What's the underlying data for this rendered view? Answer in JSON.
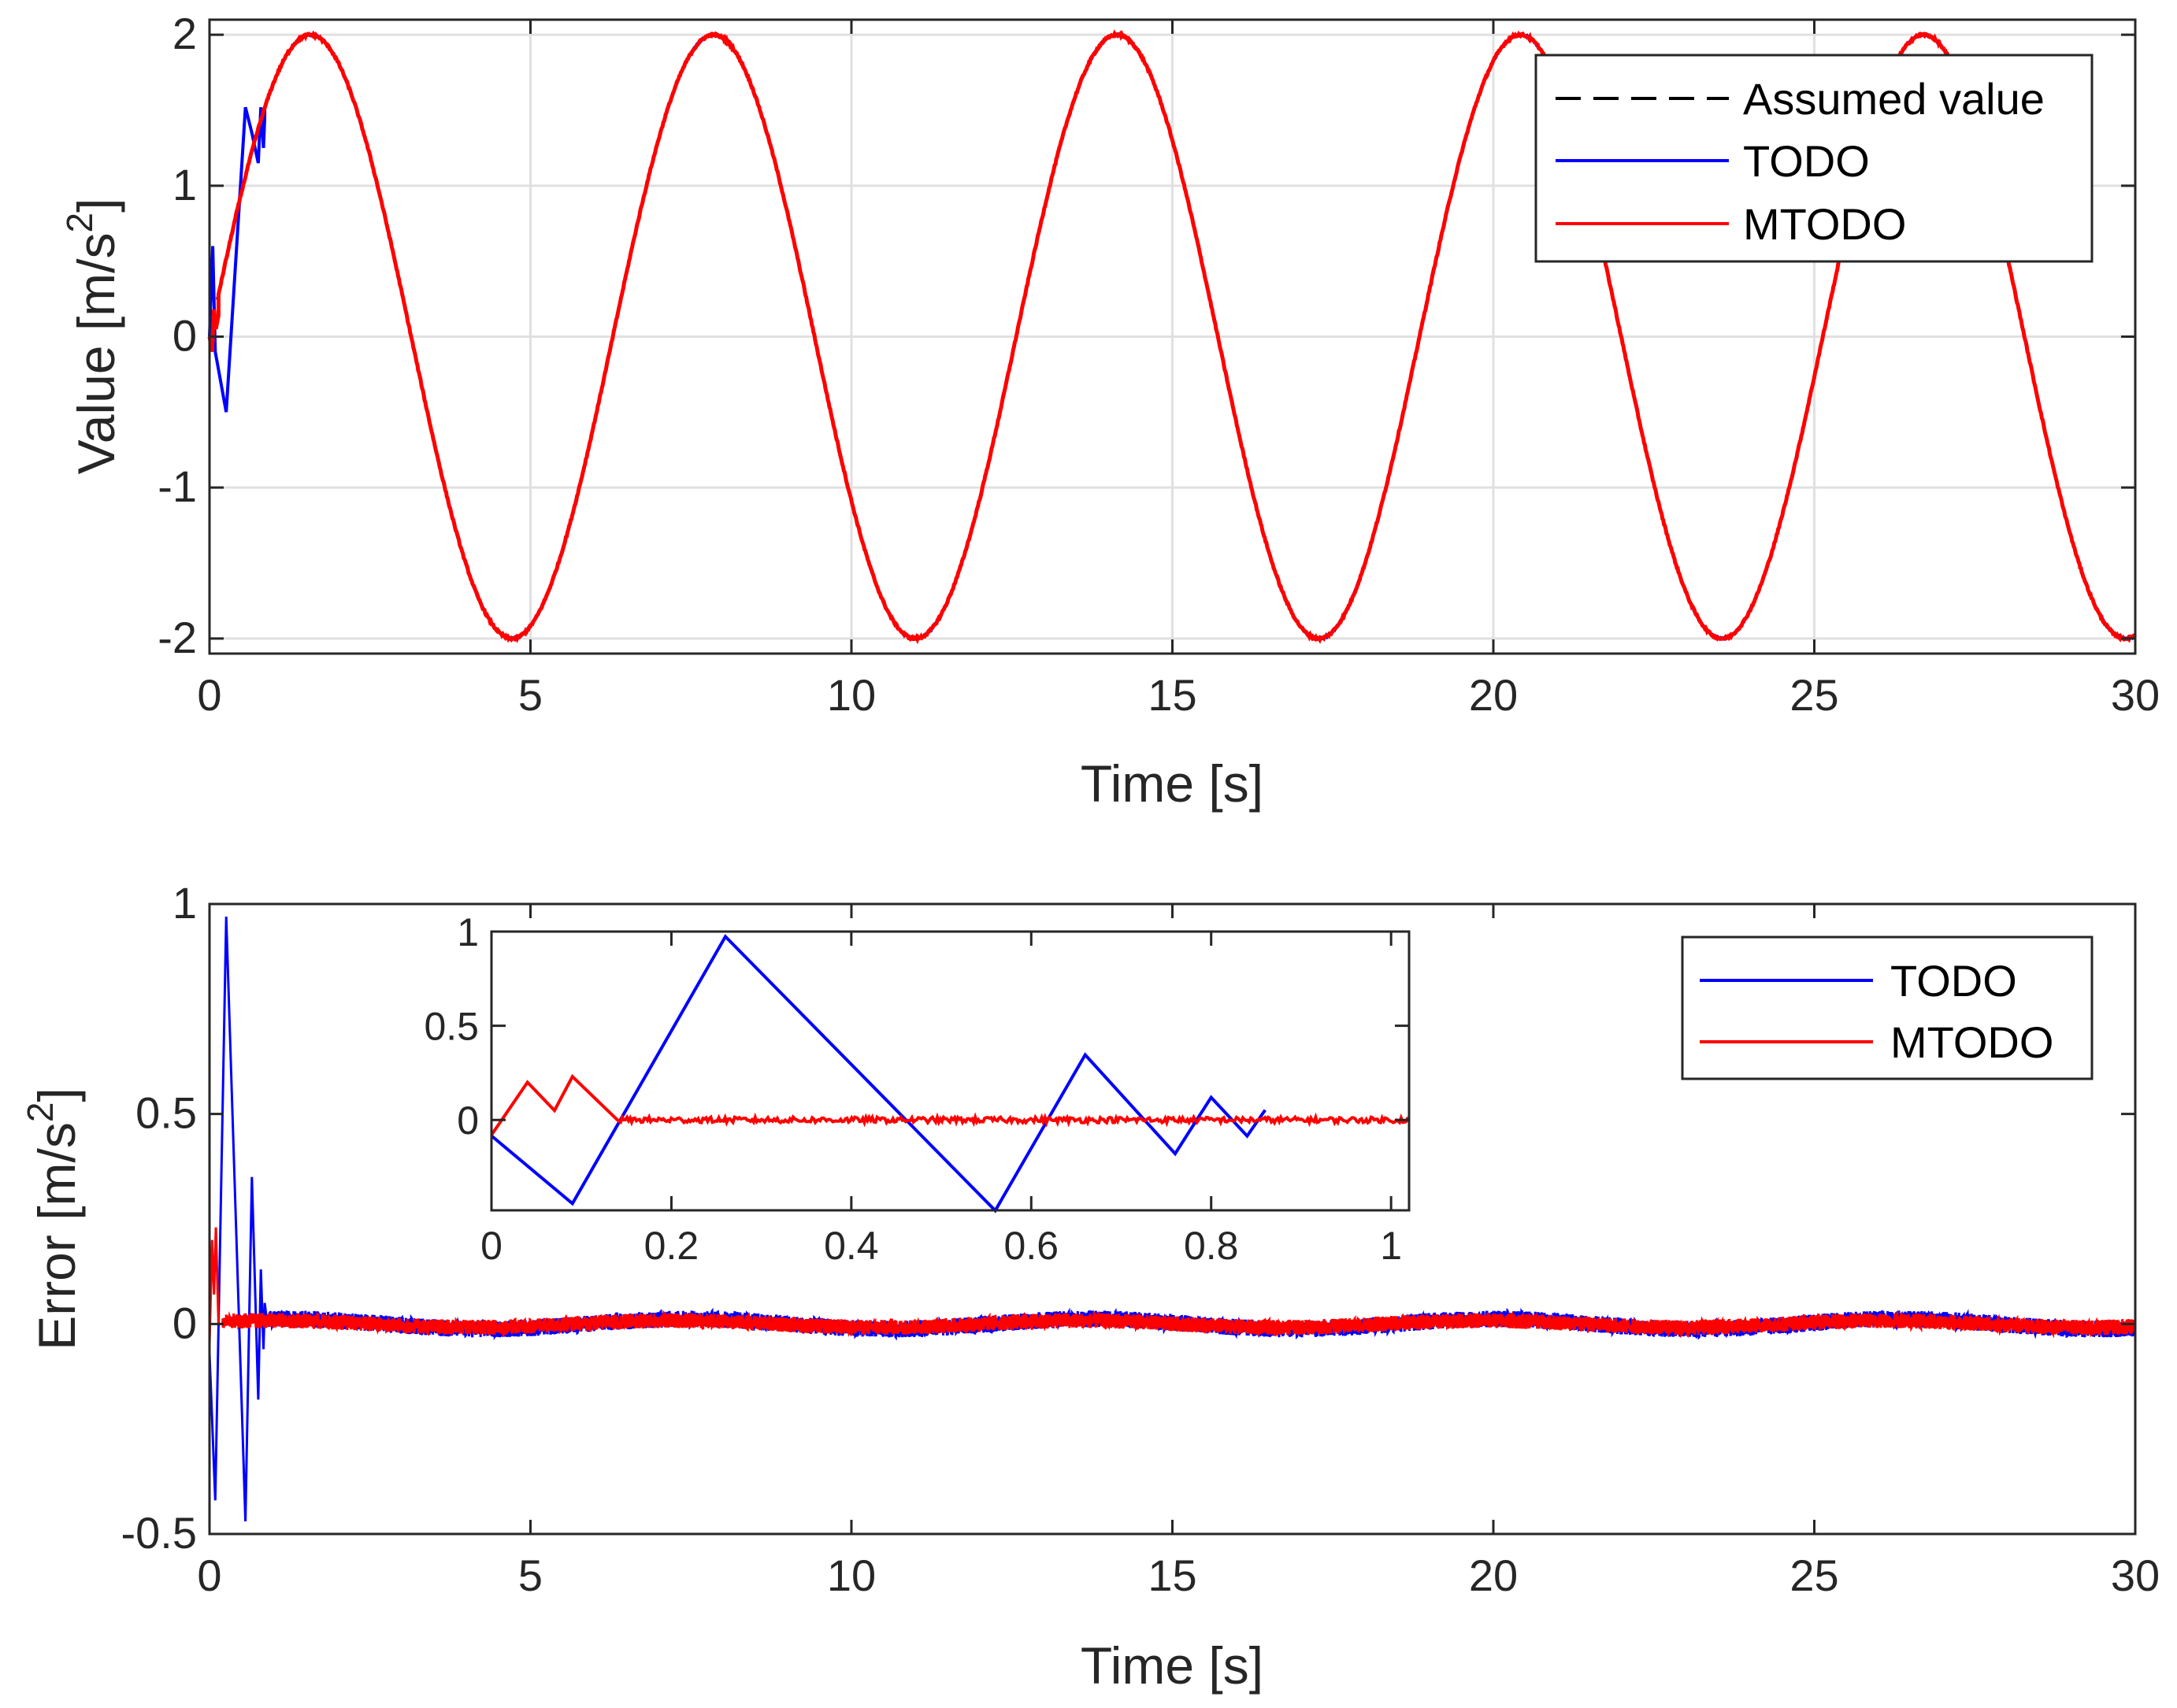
{
  "chart_data": [
    {
      "type": "line",
      "id": "top",
      "xlabel": "Time [s]",
      "ylabel": "Value [m/s",
      "ylabel_sup": "2",
      "ylabel_end": "]",
      "xlim": [
        0,
        30
      ],
      "ylim": [
        -2.1,
        2.1
      ],
      "xticks": [
        0,
        5,
        10,
        15,
        20,
        25,
        30
      ],
      "yticks": [
        -2,
        -1,
        0,
        1,
        2
      ],
      "grid": true,
      "legend": {
        "location": "top-right",
        "entries": [
          "Assumed value",
          "TODO",
          "MTODO"
        ]
      },
      "signal": {
        "function": "2*sin(t)",
        "amplitude": 2,
        "angular_frequency": 1
      },
      "series": [
        {
          "name": "Assumed value",
          "color": "#000000",
          "style": "dashed",
          "x": [
            0,
            30
          ],
          "y_from_signal": true
        },
        {
          "name": "TODO",
          "color": "#0000ff",
          "style": "solid",
          "initial_transient": {
            "x": [
              0,
              0.05,
              0.09,
              0.26,
              0.56,
              0.66,
              0.76,
              0.8,
              0.84,
              0.86
            ],
            "y": [
              0.0,
              0.6,
              -0.1,
              -0.5,
              1.52,
              1.35,
              1.15,
              1.52,
              1.25,
              1.45
            ]
          },
          "then_follows_signal": true
        },
        {
          "name": "MTODO",
          "color": "#ff0000",
          "style": "solid",
          "initial_transient": {
            "x": [
              0,
              0.04,
              0.07,
              0.1,
              0.14
            ],
            "y": [
              0.0,
              -0.1,
              0.18,
              0.05,
              0.14
            ]
          },
          "then_follows_signal": true
        }
      ]
    },
    {
      "type": "line",
      "id": "bottom",
      "xlabel": "Time [s]",
      "ylabel": "Error [m/s",
      "ylabel_sup": "2",
      "ylabel_end": "]",
      "xlim": [
        0,
        30
      ],
      "ylim": [
        -0.5,
        1.0
      ],
      "xticks": [
        0,
        5,
        10,
        15,
        20,
        25,
        30
      ],
      "yticks": [
        -0.5,
        0,
        0.5,
        1
      ],
      "ytick_labels": [
        "-0.5",
        "0",
        "0.5",
        "1"
      ],
      "grid": false,
      "legend": {
        "location": "top-right",
        "entries": [
          "TODO",
          "MTODO"
        ]
      },
      "series": [
        {
          "name": "TODO",
          "color": "#0000ff",
          "style": "solid",
          "x": [
            0,
            0.09,
            0.26,
            0.56,
            0.66,
            0.76,
            0.8,
            0.84,
            0.86,
            0.9
          ],
          "y": [
            -0.07,
            -0.42,
            0.97,
            -0.47,
            0.35,
            -0.18,
            0.13,
            -0.06,
            0.05,
            0.0
          ],
          "steady_state_noise": 0.02,
          "slow_drift_amplitude": 0.012
        },
        {
          "name": "MTODO",
          "color": "#ff0000",
          "style": "solid",
          "x": [
            0,
            0.04,
            0.07,
            0.1,
            0.14,
            0.2
          ],
          "y": [
            -0.05,
            0.2,
            0.07,
            0.23,
            0.0,
            0.0
          ],
          "steady_state_noise": 0.018,
          "slow_drift_amplitude": 0.008
        }
      ]
    },
    {
      "type": "line",
      "id": "inset",
      "xlim": [
        0,
        1.02
      ],
      "ylim": [
        -0.48,
        1.0
      ],
      "xticks": [
        0,
        0.2,
        0.4,
        0.6,
        0.8,
        1
      ],
      "xtick_labels": [
        "0",
        "0.2",
        "0.4",
        "0.6",
        "0.8",
        "1"
      ],
      "yticks": [
        0,
        0.5,
        1
      ],
      "ytick_labels": [
        "0",
        "0.5",
        "1"
      ],
      "grid": false,
      "series": [
        {
          "name": "TODO",
          "color": "#0000ff",
          "x": [
            0,
            0.09,
            0.26,
            0.56,
            0.66,
            0.76,
            0.8,
            0.84,
            0.86
          ],
          "y": [
            -0.08,
            -0.45,
            0.97,
            -0.48,
            0.34,
            -0.18,
            0.12,
            -0.08,
            0.05
          ]
        },
        {
          "name": "MTODO",
          "color": "#ff0000",
          "x": [
            0,
            0.04,
            0.07,
            0.09,
            0.14,
            1.02
          ],
          "y": [
            -0.08,
            0.2,
            0.05,
            0.23,
            0.0,
            0.0
          ],
          "steady_state_noise": 0.015
        }
      ]
    }
  ]
}
